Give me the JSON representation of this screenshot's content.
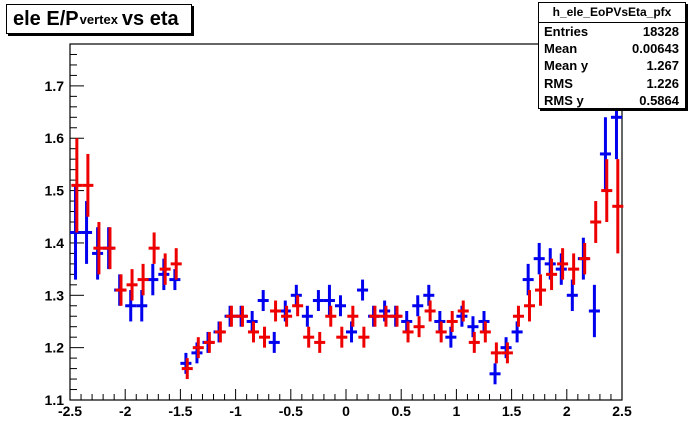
{
  "chart_data": {
    "type": "scatter",
    "title_main": "ele E/P",
    "title_sub": "vertex",
    "title_tail": "vs eta",
    "xlim": [
      -2.5,
      2.5
    ],
    "ylim": [
      1.1,
      1.78
    ],
    "x_ticks": [
      "-2.5",
      "-2",
      "-1.5",
      "-1",
      "-0.5",
      "0",
      "0.5",
      "1",
      "1.5",
      "2",
      "2.5"
    ],
    "y_ticks": [
      "1.1",
      "1.2",
      "1.3",
      "1.4",
      "1.5",
      "1.6",
      "1.7"
    ],
    "bin_half_width": 0.05,
    "stats": {
      "name": "h_ele_EoPVsEta_pfx",
      "rows": [
        {
          "label": "Entries",
          "value": "18328"
        },
        {
          "label": "Mean",
          "value": "0.00643"
        },
        {
          "label": "Mean y",
          "value": "1.267"
        },
        {
          "label": "RMS",
          "value": "1.226"
        },
        {
          "label": "RMS y",
          "value": "0.5864"
        }
      ]
    },
    "series": [
      {
        "color": "#0000ee",
        "offset": 0.0,
        "points": [
          [
            -2.45,
            1.42,
            0.09
          ],
          [
            -2.35,
            1.42,
            0.06
          ],
          [
            -2.25,
            1.38,
            0.05
          ],
          [
            -2.15,
            1.39,
            0.04
          ],
          [
            -2.05,
            1.31,
            0.03
          ],
          [
            -1.95,
            1.28,
            0.03
          ],
          [
            -1.85,
            1.28,
            0.03
          ],
          [
            -1.75,
            1.33,
            0.03
          ],
          [
            -1.65,
            1.34,
            0.03
          ],
          [
            -1.55,
            1.33,
            0.02
          ],
          [
            -1.45,
            1.17,
            0.02
          ],
          [
            -1.35,
            1.19,
            0.02
          ],
          [
            -1.25,
            1.21,
            0.02
          ],
          [
            -1.15,
            1.23,
            0.02
          ],
          [
            -1.05,
            1.26,
            0.02
          ],
          [
            -0.95,
            1.26,
            0.02
          ],
          [
            -0.85,
            1.25,
            0.02
          ],
          [
            -0.75,
            1.29,
            0.02
          ],
          [
            -0.65,
            1.21,
            0.02
          ],
          [
            -0.55,
            1.27,
            0.02
          ],
          [
            -0.45,
            1.3,
            0.02
          ],
          [
            -0.35,
            1.26,
            0.02
          ],
          [
            -0.25,
            1.29,
            0.02
          ],
          [
            -0.15,
            1.29,
            0.03
          ],
          [
            -0.05,
            1.28,
            0.02
          ],
          [
            0.05,
            1.23,
            0.02
          ],
          [
            0.15,
            1.31,
            0.02
          ],
          [
            0.25,
            1.26,
            0.02
          ],
          [
            0.35,
            1.27,
            0.02
          ],
          [
            0.45,
            1.26,
            0.02
          ],
          [
            0.55,
            1.25,
            0.02
          ],
          [
            0.65,
            1.28,
            0.02
          ],
          [
            0.75,
            1.3,
            0.02
          ],
          [
            0.85,
            1.25,
            0.02
          ],
          [
            0.95,
            1.22,
            0.02
          ],
          [
            1.05,
            1.26,
            0.02
          ],
          [
            1.15,
            1.24,
            0.02
          ],
          [
            1.25,
            1.25,
            0.02
          ],
          [
            1.35,
            1.15,
            0.02
          ],
          [
            1.45,
            1.2,
            0.02
          ],
          [
            1.55,
            1.23,
            0.02
          ],
          [
            1.65,
            1.33,
            0.03
          ],
          [
            1.75,
            1.37,
            0.03
          ],
          [
            1.85,
            1.36,
            0.03
          ],
          [
            1.95,
            1.35,
            0.03
          ],
          [
            2.05,
            1.3,
            0.03
          ],
          [
            2.15,
            1.37,
            0.04
          ],
          [
            2.25,
            1.27,
            0.05
          ],
          [
            2.35,
            1.57,
            0.07
          ],
          [
            2.45,
            1.64,
            0.08
          ]
        ]
      },
      {
        "color": "#ee0000",
        "offset": 0.012,
        "points": [
          [
            -2.45,
            1.51,
            0.09
          ],
          [
            -2.35,
            1.51,
            0.06
          ],
          [
            -2.25,
            1.39,
            0.05
          ],
          [
            -2.15,
            1.39,
            0.04
          ],
          [
            -2.05,
            1.31,
            0.03
          ],
          [
            -1.95,
            1.32,
            0.03
          ],
          [
            -1.85,
            1.33,
            0.03
          ],
          [
            -1.75,
            1.39,
            0.03
          ],
          [
            -1.65,
            1.35,
            0.03
          ],
          [
            -1.55,
            1.36,
            0.03
          ],
          [
            -1.45,
            1.16,
            0.02
          ],
          [
            -1.35,
            1.2,
            0.02
          ],
          [
            -1.25,
            1.21,
            0.02
          ],
          [
            -1.15,
            1.23,
            0.02
          ],
          [
            -1.05,
            1.26,
            0.02
          ],
          [
            -0.95,
            1.26,
            0.02
          ],
          [
            -0.85,
            1.23,
            0.02
          ],
          [
            -0.75,
            1.22,
            0.02
          ],
          [
            -0.65,
            1.27,
            0.02
          ],
          [
            -0.55,
            1.26,
            0.02
          ],
          [
            -0.45,
            1.28,
            0.02
          ],
          [
            -0.35,
            1.22,
            0.02
          ],
          [
            -0.25,
            1.21,
            0.02
          ],
          [
            -0.15,
            1.26,
            0.02
          ],
          [
            -0.05,
            1.22,
            0.02
          ],
          [
            0.05,
            1.26,
            0.02
          ],
          [
            0.15,
            1.22,
            0.02
          ],
          [
            0.25,
            1.26,
            0.02
          ],
          [
            0.35,
            1.26,
            0.02
          ],
          [
            0.45,
            1.26,
            0.02
          ],
          [
            0.55,
            1.23,
            0.02
          ],
          [
            0.65,
            1.24,
            0.02
          ],
          [
            0.75,
            1.27,
            0.02
          ],
          [
            0.85,
            1.23,
            0.02
          ],
          [
            0.95,
            1.25,
            0.02
          ],
          [
            1.05,
            1.27,
            0.02
          ],
          [
            1.15,
            1.21,
            0.02
          ],
          [
            1.25,
            1.23,
            0.02
          ],
          [
            1.35,
            1.19,
            0.02
          ],
          [
            1.45,
            1.19,
            0.02
          ],
          [
            1.55,
            1.26,
            0.02
          ],
          [
            1.65,
            1.28,
            0.03
          ],
          [
            1.75,
            1.31,
            0.03
          ],
          [
            1.85,
            1.34,
            0.03
          ],
          [
            1.95,
            1.36,
            0.03
          ],
          [
            2.05,
            1.35,
            0.03
          ],
          [
            2.15,
            1.37,
            0.03
          ],
          [
            2.25,
            1.44,
            0.04
          ],
          [
            2.35,
            1.5,
            0.06
          ],
          [
            2.45,
            1.47,
            0.09
          ]
        ]
      }
    ]
  }
}
